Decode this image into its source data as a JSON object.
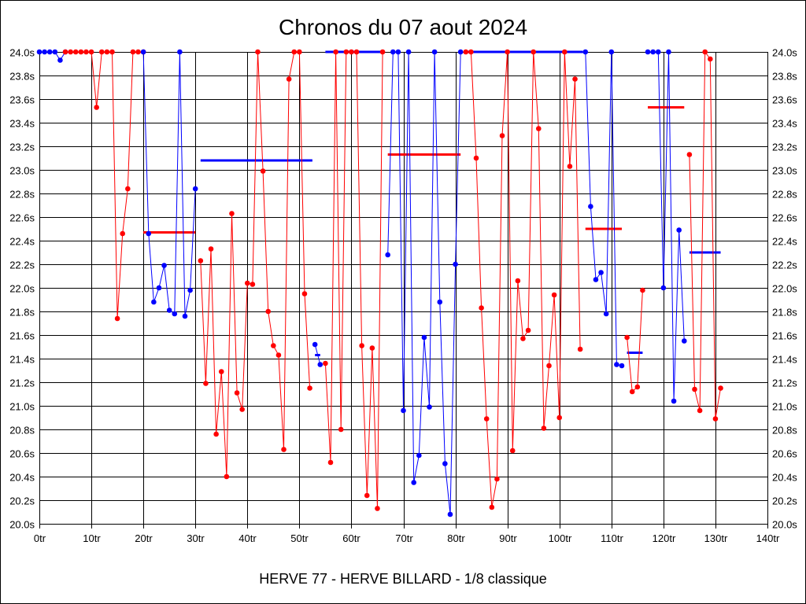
{
  "chart_data": {
    "type": "line",
    "title": "Chronos du 07 aout 2024",
    "footer": "HERVE 77 - HERVE BILLARD - 1/8 classique",
    "xlim": [
      0,
      140
    ],
    "ylim": [
      20.0,
      24.0
    ],
    "x_ticks": [
      {
        "v": 0,
        "label": "0tr"
      },
      {
        "v": 10,
        "label": "10tr"
      },
      {
        "v": 20,
        "label": "20tr"
      },
      {
        "v": 30,
        "label": "30tr"
      },
      {
        "v": 40,
        "label": "40tr"
      },
      {
        "v": 50,
        "label": "50tr"
      },
      {
        "v": 60,
        "label": "60tr"
      },
      {
        "v": 70,
        "label": "70tr"
      },
      {
        "v": 80,
        "label": "80tr"
      },
      {
        "v": 90,
        "label": "90tr"
      },
      {
        "v": 100,
        "label": "100tr"
      },
      {
        "v": 110,
        "label": "110tr"
      },
      {
        "v": 120,
        "label": "120tr"
      },
      {
        "v": 130,
        "label": "130tr"
      },
      {
        "v": 140,
        "label": "140tr"
      }
    ],
    "y_ticks": [
      {
        "v": 24.0,
        "label": "24.0s"
      },
      {
        "v": 23.8,
        "label": "23.8s"
      },
      {
        "v": 23.6,
        "label": "23.6s"
      },
      {
        "v": 23.4,
        "label": "23.4s"
      },
      {
        "v": 23.2,
        "label": "23.2s"
      },
      {
        "v": 23.0,
        "label": "23.0s"
      },
      {
        "v": 22.8,
        "label": "22.8s"
      },
      {
        "v": 22.6,
        "label": "22.6s"
      },
      {
        "v": 22.4,
        "label": "22.4s"
      },
      {
        "v": 22.2,
        "label": "22.2s"
      },
      {
        "v": 22.0,
        "label": "22.0s"
      },
      {
        "v": 21.8,
        "label": "21.8s"
      },
      {
        "v": 21.6,
        "label": "21.6s"
      },
      {
        "v": 21.4,
        "label": "21.4s"
      },
      {
        "v": 21.2,
        "label": "21.2s"
      },
      {
        "v": 21.0,
        "label": "21.0s"
      },
      {
        "v": 20.8,
        "label": "20.8s"
      },
      {
        "v": 20.6,
        "label": "20.6s"
      },
      {
        "v": 20.4,
        "label": "20.4s"
      },
      {
        "v": 20.2,
        "label": "20.2s"
      },
      {
        "v": 20.0,
        "label": "20.0s"
      }
    ],
    "grid": true,
    "colors": {
      "blue": "#0000ff",
      "red": "#ff0000",
      "grid": "#000000",
      "background": "#ffffff"
    },
    "segments": [
      {
        "color": "blue",
        "points": [
          [
            0,
            24.0
          ],
          [
            1,
            24.0
          ],
          [
            2,
            24.0
          ],
          [
            3,
            24.0
          ],
          [
            4,
            23.93
          ],
          [
            5,
            24.0
          ]
        ]
      },
      {
        "color": "red",
        "points": [
          [
            5,
            24.0
          ],
          [
            6,
            24.0
          ],
          [
            7,
            24.0
          ],
          [
            8,
            24.0
          ],
          [
            9,
            24.0
          ],
          [
            10,
            24.0
          ],
          [
            11,
            23.53
          ],
          [
            12,
            24.0
          ],
          [
            13,
            24.0
          ],
          [
            14,
            24.0
          ],
          [
            15,
            21.74
          ],
          [
            16,
            22.46
          ],
          [
            17,
            22.84
          ],
          [
            18,
            24.0
          ],
          [
            19,
            24.0
          ],
          [
            20,
            24.0
          ]
        ]
      },
      {
        "color": "blue",
        "points": [
          [
            20,
            24.0
          ],
          [
            21,
            22.46
          ],
          [
            22,
            21.88
          ],
          [
            23,
            22.0
          ],
          [
            24,
            22.19
          ],
          [
            25,
            21.81
          ],
          [
            26,
            21.78
          ],
          [
            27,
            24.0
          ],
          [
            28,
            21.76
          ],
          [
            29,
            21.98
          ],
          [
            30,
            22.84
          ]
        ]
      },
      {
        "color": "red",
        "points": [
          [
            31,
            22.23
          ],
          [
            32,
            21.19
          ],
          [
            33,
            22.33
          ],
          [
            34,
            20.76
          ],
          [
            35,
            21.29
          ],
          [
            36,
            20.4
          ],
          [
            37,
            22.63
          ],
          [
            38,
            21.11
          ],
          [
            39,
            20.97
          ],
          [
            40,
            22.04
          ],
          [
            41,
            22.03
          ],
          [
            42,
            24.0
          ],
          [
            43,
            22.99
          ],
          [
            44,
            21.8
          ],
          [
            45,
            21.51
          ],
          [
            46,
            21.43
          ],
          [
            47,
            20.63
          ],
          [
            48,
            23.77
          ],
          [
            49,
            24.0
          ],
          [
            50,
            24.0
          ],
          [
            51,
            21.95
          ],
          [
            52,
            21.15
          ]
        ]
      },
      {
        "color": "blue",
        "points": [
          [
            53,
            21.52
          ],
          [
            54,
            21.35
          ]
        ]
      },
      {
        "color": "red",
        "points": [
          [
            55,
            21.36
          ],
          [
            56,
            20.52
          ],
          [
            57,
            24.0
          ],
          [
            58,
            20.8
          ],
          [
            59,
            24.0
          ],
          [
            60,
            24.0
          ],
          [
            61,
            24.0
          ],
          [
            62,
            21.51
          ],
          [
            63,
            20.24
          ],
          [
            64,
            21.49
          ],
          [
            65,
            20.13
          ],
          [
            66,
            24.0
          ]
        ]
      },
      {
        "color": "blue",
        "points": [
          [
            67,
            22.28
          ],
          [
            68,
            24.0
          ],
          [
            69,
            24.0
          ],
          [
            70,
            20.96
          ],
          [
            71,
            24.0
          ],
          [
            72,
            20.35
          ],
          [
            73,
            20.58
          ],
          [
            74,
            21.58
          ],
          [
            75,
            20.99
          ],
          [
            76,
            24.0
          ],
          [
            77,
            21.88
          ],
          [
            78,
            20.51
          ],
          [
            79,
            20.08
          ],
          [
            80,
            22.2
          ],
          [
            81,
            24.0
          ]
        ]
      },
      {
        "color": "red",
        "points": [
          [
            82,
            24.0
          ],
          [
            83,
            24.0
          ],
          [
            84,
            23.1
          ],
          [
            85,
            21.83
          ],
          [
            86,
            20.89
          ],
          [
            87,
            20.14
          ],
          [
            88,
            20.38
          ],
          [
            89,
            23.29
          ],
          [
            90,
            24.0
          ],
          [
            91,
            20.62
          ],
          [
            92,
            22.06
          ],
          [
            93,
            21.57
          ],
          [
            94,
            21.64
          ],
          [
            95,
            24.0
          ],
          [
            96,
            23.35
          ],
          [
            97,
            20.81
          ],
          [
            98,
            21.34
          ],
          [
            99,
            21.94
          ],
          [
            100,
            20.9
          ],
          [
            101,
            24.0
          ],
          [
            102,
            23.03
          ],
          [
            103,
            23.77
          ],
          [
            104,
            21.48
          ]
        ]
      },
      {
        "color": "blue",
        "points": [
          [
            105,
            24.0
          ],
          [
            106,
            22.69
          ],
          [
            107,
            22.07
          ],
          [
            108,
            22.13
          ],
          [
            109,
            21.78
          ],
          [
            110,
            24.0
          ],
          [
            111,
            21.35
          ],
          [
            112,
            21.34
          ]
        ]
      },
      {
        "color": "red",
        "points": [
          [
            113,
            21.58
          ],
          [
            114,
            21.12
          ],
          [
            115,
            21.16
          ],
          [
            116,
            21.98
          ]
        ]
      },
      {
        "color": "blue",
        "points": [
          [
            117,
            24.0
          ],
          [
            118,
            24.0
          ],
          [
            119,
            24.0
          ],
          [
            120,
            22.0
          ],
          [
            121,
            24.0
          ],
          [
            122,
            21.04
          ],
          [
            123,
            22.49
          ],
          [
            124,
            21.55
          ]
        ]
      },
      {
        "color": "red",
        "points": [
          [
            125,
            23.13
          ],
          [
            126,
            21.14
          ],
          [
            127,
            20.96
          ],
          [
            128,
            24.0
          ],
          [
            129,
            23.94
          ],
          [
            130,
            20.89
          ],
          [
            131,
            21.15
          ]
        ]
      }
    ],
    "averages": [
      {
        "color": "red",
        "x_start": 20,
        "x_end": 30,
        "y": 22.47
      },
      {
        "color": "blue",
        "x_start": 31,
        "x_end": 52.5,
        "y": 23.08
      },
      {
        "color": "blue",
        "x_start": 53,
        "x_end": 54,
        "y": 21.43
      },
      {
        "color": "blue",
        "x_start": 55,
        "x_end": 66,
        "y": 24.0
      },
      {
        "color": "red",
        "x_start": 67,
        "x_end": 81,
        "y": 23.13
      },
      {
        "color": "blue",
        "x_start": 82,
        "x_end": 104.5,
        "y": 24.0
      },
      {
        "color": "red",
        "x_start": 105,
        "x_end": 112,
        "y": 22.5
      },
      {
        "color": "blue",
        "x_start": 113,
        "x_end": 116,
        "y": 21.45
      },
      {
        "color": "red",
        "x_start": 117,
        "x_end": 124,
        "y": 23.53
      },
      {
        "color": "blue",
        "x_start": 125,
        "x_end": 131,
        "y": 22.3
      }
    ]
  }
}
